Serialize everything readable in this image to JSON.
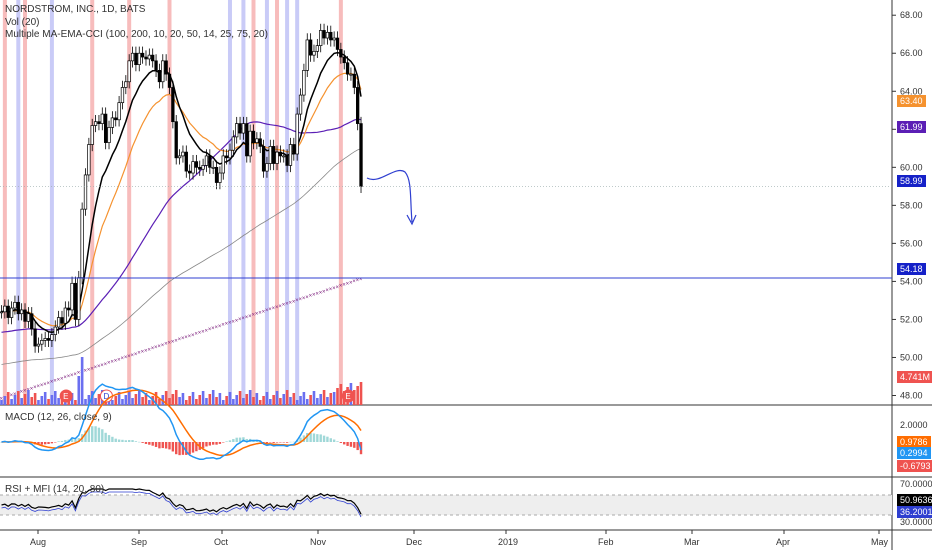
{
  "header": {
    "title": "NORDSTROM, INC., 1D, BATS",
    "vol_label": "Vol (20)",
    "ma_label": "Multiple MA-EMA-CCI (100, 200, 10, 20, 50, 14, 25, 75, 20)",
    "macd_label": "MACD (12, 26, close, 9)",
    "rsi_label": "RSI + MFI (14, 20, 80)"
  },
  "colors": {
    "up": "#000000",
    "down": "#000000",
    "ema10": "#000000",
    "ema20": "#f5922f",
    "ma50": "#5b1fb5",
    "ma100": "#888888",
    "ma200": "#7b1c7b",
    "vol_up": "#6a6ff0",
    "vol_down": "#ef5350",
    "macd": "#2196f3",
    "signal": "#ff6d00",
    "hist_pos": "#a0d8d8",
    "hist_neg": "#ef5350",
    "support": "#2f3fd0",
    "highlight_red": "#f4a6a6",
    "highlight_blue": "#b7b9f4"
  },
  "chart_data": {
    "type": "candlestick",
    "price_axis": {
      "ticks": [
        "68.00",
        "66.00",
        "64.00",
        "62.00",
        "60.00",
        "58.00",
        "56.00",
        "54.00",
        "52.00",
        "50.00",
        "48.00"
      ],
      "ylim": [
        47.5,
        68.8
      ]
    },
    "time_axis": {
      "ticks": [
        "Aug",
        "Sep",
        "Oct",
        "Nov",
        "Dec",
        "2019",
        "Feb",
        "Mar",
        "Apr",
        "May"
      ]
    },
    "candles_close": [
      52.4,
      52.7,
      52.1,
      52.6,
      52.9,
      52.3,
      52.5,
      51.9,
      52.3,
      51.5,
      50.6,
      50.7,
      50.9,
      51.0,
      50.9,
      51.2,
      51.6,
      52.1,
      51.8,
      52.6,
      52.5,
      53.9,
      52.0,
      54.2,
      57.8,
      59.6,
      61.2,
      62.2,
      62.4,
      62.3,
      62.8,
      61.3,
      62.1,
      62.6,
      62.5,
      63.4,
      64.2,
      64.5,
      65.6,
      66.0,
      65.4,
      66.0,
      65.8,
      65.7,
      65.9,
      65.6,
      65.1,
      64.5,
      65.6,
      64.9,
      64.2,
      62.4,
      60.5,
      60.6,
      60.8,
      59.8,
      59.7,
      60.3,
      60.0,
      59.9,
      60.1,
      60.6,
      60.0,
      60.0,
      59.2,
      59.7,
      60.6,
      60.5,
      60.9,
      61.6,
      62.3,
      61.8,
      62.3,
      60.6,
      61.9,
      61.3,
      61.5,
      61.1,
      59.8,
      60.2,
      61.1,
      60.2,
      60.8,
      60.6,
      60.6,
      60.1,
      61.2,
      60.7,
      62.8,
      63.8,
      65.1,
      66.7,
      65.9,
      66.1,
      66.4,
      67.2,
      66.8,
      67.1,
      66.7,
      66.8,
      66.2,
      65.8,
      65.5,
      64.9,
      64.9,
      64.2,
      62.3,
      59.0
    ],
    "last_price": "58.99",
    "ema20_last": "63.40",
    "ma50_last": "61.99",
    "support_level": "54.18",
    "volume_last": "4.741M",
    "earnings_marker": "E",
    "dividend_marker": "D",
    "macd_axis": {
      "ticks": [
        "2.0000"
      ]
    },
    "macd_values": {
      "signal": "0.9786",
      "macd": "0.2994",
      "hist": "-0.6793"
    },
    "rsi_axis": {
      "ticks": [
        "70.0000",
        "30.0000"
      ]
    },
    "rsi_values": {
      "rsi": "50.9636",
      "mfi": "36.2001"
    }
  }
}
